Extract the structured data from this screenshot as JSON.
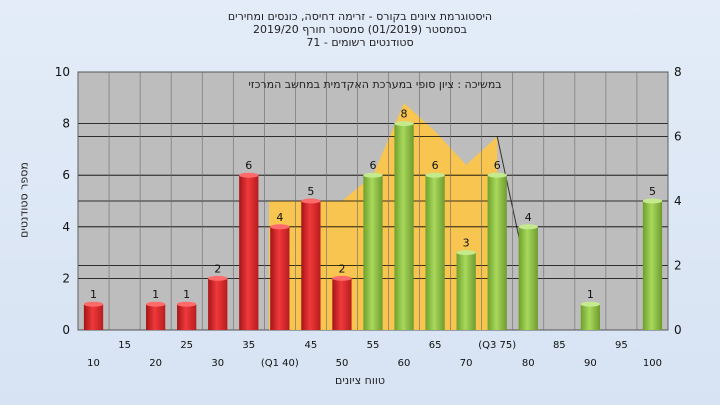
{
  "chart_data": {
    "type": "bar",
    "title_lines": [
      "היסטוגרמת ציונים בקורס - זרימה דחיסה, כונסים ומחירים",
      "בסמסטר  (01/2019)  סמסטר חורף 2019/20",
      "סטודנטים רשומים - 71"
    ],
    "ylabel": "מספר סטודנטים",
    "xlabel": "טווח ציונים",
    "note": "במשיכה : ציון סופי במערכת האקדמית במחשב המרכזי",
    "ylim": [
      0,
      10
    ],
    "y_ticks": [
      "0",
      "2",
      "4",
      "6",
      "8",
      "10"
    ],
    "y2lim": [
      0,
      8
    ],
    "y2_ticks": [
      "0",
      "2",
      "4",
      "6",
      "8"
    ],
    "x_labels": [
      "10",
      "15",
      "20",
      "25",
      "30",
      "35",
      "(Q1 40)",
      "45",
      "50",
      "55",
      "60",
      "65",
      "70",
      "(Q3 75)",
      "80",
      "85",
      "90",
      "95",
      "100"
    ],
    "values": [
      1,
      0,
      1,
      1,
      2,
      6,
      4,
      5,
      2,
      6,
      8,
      6,
      3,
      6,
      4,
      0,
      1,
      0,
      5
    ],
    "labels": [
      "1",
      "",
      "1",
      "1",
      "2",
      "6",
      "4",
      "5",
      "2",
      "6",
      "8",
      "6",
      "3",
      "6",
      "4",
      "",
      "1",
      "",
      "5"
    ],
    "bar_groups": [
      "low",
      "low",
      "low",
      "low",
      "low",
      "low",
      "low",
      "low",
      "low",
      "high",
      "high",
      "high",
      "high",
      "high",
      "high",
      "high",
      "high",
      "high",
      "high"
    ],
    "band": {
      "from_index": 6,
      "to_index": 13
    },
    "band_values": [
      5,
      5,
      5,
      6,
      8.8,
      7.7,
      6.4,
      7.5
    ],
    "colors": {
      "low_bar": "#e8282a",
      "high_bar": "#8cc63f",
      "band": "#fbc64a",
      "plot_bg": "#bdbdbd"
    }
  }
}
